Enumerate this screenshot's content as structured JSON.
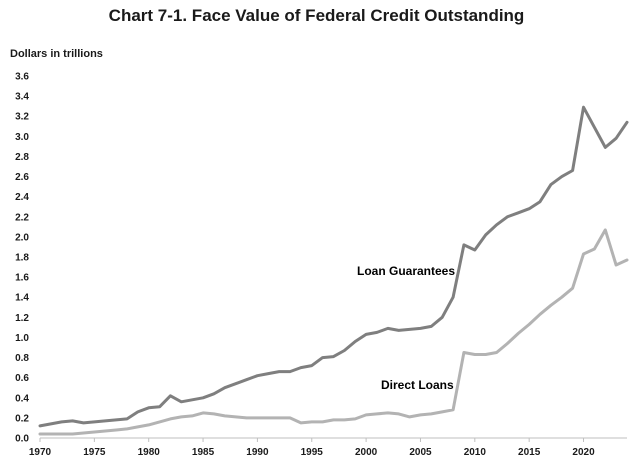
{
  "chart_data": {
    "type": "line",
    "title": "Chart 7-1.  Face Value of Federal Credit Outstanding",
    "ylabel": "Dollars in trillions",
    "xlabel": "",
    "xlim": [
      1970,
      2024
    ],
    "ylim": [
      0,
      3.6
    ],
    "x_ticks": [
      1970,
      1975,
      1980,
      1985,
      1990,
      1995,
      2000,
      2005,
      2010,
      2015,
      2020
    ],
    "y_ticks": [
      "0.0",
      "0.2",
      "0.4",
      "0.6",
      "0.8",
      "1.0",
      "1.2",
      "1.4",
      "1.6",
      "1.8",
      "2.0",
      "2.2",
      "2.4",
      "2.6",
      "2.8",
      "3.0",
      "3.2",
      "3.4",
      "3.6"
    ],
    "grid": false,
    "legend": "none",
    "x": [
      1970,
      1971,
      1972,
      1973,
      1974,
      1975,
      1976,
      1977,
      1978,
      1979,
      1980,
      1981,
      1982,
      1983,
      1984,
      1985,
      1986,
      1987,
      1988,
      1989,
      1990,
      1991,
      1992,
      1993,
      1994,
      1995,
      1996,
      1997,
      1998,
      1999,
      2000,
      2001,
      2002,
      2003,
      2004,
      2005,
      2006,
      2007,
      2008,
      2009,
      2010,
      2011,
      2012,
      2013,
      2014,
      2015,
      2016,
      2017,
      2018,
      2019,
      2020,
      2021,
      2022,
      2023,
      2024
    ],
    "series": [
      {
        "name": "Loan Guarantees",
        "color": "#7f7f7f",
        "values": [
          0.12,
          0.14,
          0.16,
          0.17,
          0.15,
          0.16,
          0.17,
          0.18,
          0.19,
          0.26,
          0.3,
          0.31,
          0.42,
          0.36,
          0.38,
          0.4,
          0.44,
          0.5,
          0.54,
          0.58,
          0.62,
          0.64,
          0.66,
          0.66,
          0.7,
          0.72,
          0.8,
          0.81,
          0.87,
          0.96,
          1.03,
          1.05,
          1.09,
          1.07,
          1.08,
          1.09,
          1.11,
          1.2,
          1.4,
          1.92,
          1.87,
          2.02,
          2.12,
          2.2,
          2.24,
          2.28,
          2.35,
          2.52,
          2.6,
          2.66,
          3.29,
          3.09,
          2.89,
          2.98,
          3.14
        ]
      },
      {
        "name": "Direct Loans",
        "color": "#b3b3b3",
        "values": [
          0.04,
          0.04,
          0.04,
          0.04,
          0.05,
          0.06,
          0.07,
          0.08,
          0.09,
          0.11,
          0.13,
          0.16,
          0.19,
          0.21,
          0.22,
          0.25,
          0.24,
          0.22,
          0.21,
          0.2,
          0.2,
          0.2,
          0.2,
          0.2,
          0.15,
          0.16,
          0.16,
          0.18,
          0.18,
          0.19,
          0.23,
          0.24,
          0.25,
          0.24,
          0.21,
          0.23,
          0.24,
          0.26,
          0.28,
          0.85,
          0.83,
          0.83,
          0.85,
          0.94,
          1.04,
          1.13,
          1.23,
          1.32,
          1.4,
          1.49,
          1.83,
          1.88,
          2.07,
          1.72,
          1.77
        ]
      }
    ]
  }
}
